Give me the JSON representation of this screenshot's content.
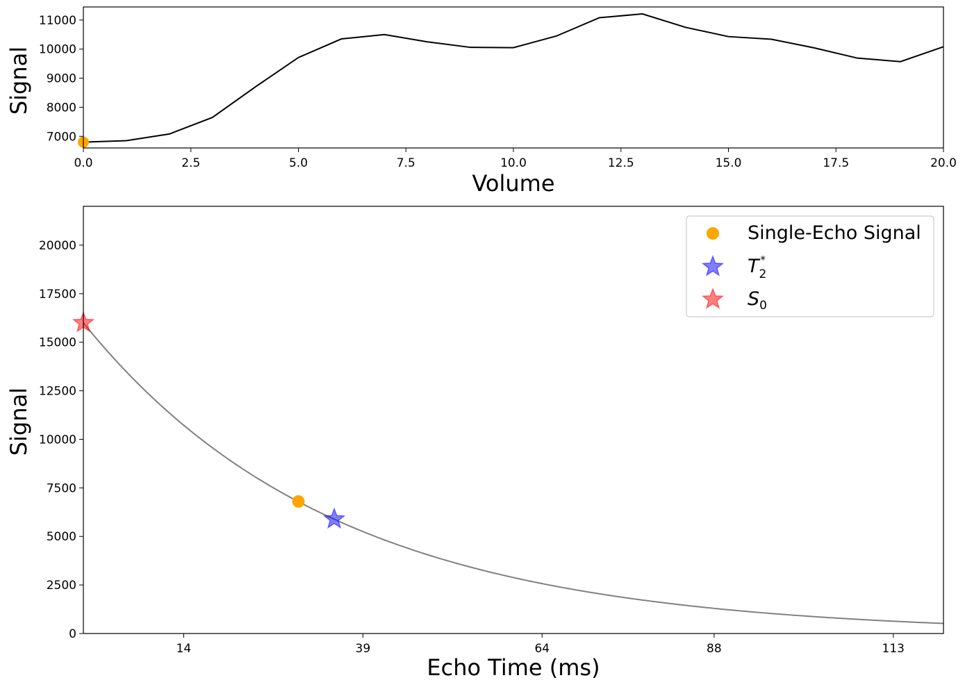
{
  "chart_data": [
    {
      "type": "line",
      "xlabel": "Volume",
      "ylabel": "Signal",
      "xlim": [
        0,
        20
      ],
      "ylim": [
        6600,
        11450
      ],
      "xticks": [
        "0.0",
        "2.5",
        "5.0",
        "7.5",
        "10.0",
        "12.5",
        "15.0",
        "17.5",
        "20.0"
      ],
      "yticks": [
        "7000",
        "8000",
        "9000",
        "10000",
        "11000"
      ],
      "series": [
        {
          "color": "#000000",
          "x": [
            0,
            1,
            2,
            3,
            4,
            5,
            6,
            7,
            8,
            9,
            10,
            11,
            12,
            13,
            14,
            15,
            16,
            17,
            18,
            19,
            20
          ],
          "values": [
            6800,
            6850,
            7080,
            7650,
            8700,
            9710,
            10350,
            10500,
            10250,
            10060,
            10050,
            10450,
            11080,
            11210,
            10750,
            10430,
            10340,
            10040,
            9690,
            9570,
            10080
          ]
        }
      ],
      "marker": {
        "x": 0,
        "y": 6800,
        "color": "#FFA500"
      }
    },
    {
      "type": "line",
      "xlabel": "Echo Time (ms)",
      "ylabel": "Signal",
      "xlim": [
        0,
        120
      ],
      "ylim": [
        0,
        22000
      ],
      "xticks": [
        "14",
        "39",
        "64",
        "88",
        "113"
      ],
      "yticks": [
        "0",
        "2500",
        "5000",
        "7500",
        "10000",
        "12500",
        "15000",
        "17500",
        "20000"
      ],
      "curve": {
        "color": "#808080",
        "S0": 16000,
        "T2star": 35
      },
      "points": [
        {
          "label": "Single-Echo Signal",
          "x": 30,
          "y": 6800,
          "color": "#FFA500",
          "marker": "circle"
        },
        {
          "label": "T2*",
          "x": 35,
          "y": 5890,
          "color": "#0000FF",
          "marker": "star"
        },
        {
          "label": "S0",
          "x": 0,
          "y": 16000,
          "color": "#FF0000",
          "marker": "star"
        }
      ],
      "legend": {
        "position": "top-right",
        "items": [
          {
            "text": "Single-Echo Signal"
          },
          {
            "base": "T",
            "sub": "2",
            "sup": "*"
          },
          {
            "base": "S",
            "sub": "0"
          }
        ]
      }
    }
  ]
}
